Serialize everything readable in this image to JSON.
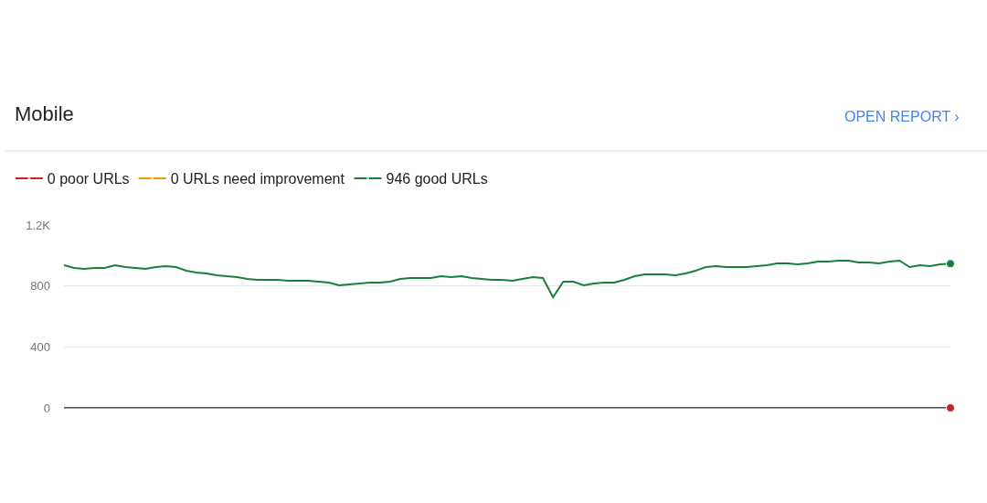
{
  "chart_data": {
    "type": "line",
    "title": "Mobile",
    "annotations": [
      "OPEN REPORT ›"
    ],
    "categories": [
      null,
      null,
      null,
      null,
      null,
      null,
      null,
      null,
      null,
      null,
      null,
      null,
      null,
      null,
      null,
      null,
      null,
      null,
      null,
      null,
      null,
      null,
      null,
      null,
      null,
      null,
      null,
      null,
      null,
      null,
      null,
      null,
      null,
      null,
      null,
      null,
      null,
      null,
      null,
      null,
      null,
      null,
      null,
      null,
      null,
      null,
      null,
      null,
      null,
      null,
      null,
      null,
      null,
      null,
      null,
      null,
      null,
      null,
      null,
      null,
      null,
      null,
      null,
      null,
      null,
      null,
      null,
      null,
      null,
      null,
      null,
      null,
      null,
      null,
      null,
      null,
      null,
      null,
      null,
      null,
      null,
      null,
      null,
      null,
      null,
      null,
      null,
      null
    ],
    "series": [
      {
        "name": "0 poor URLs",
        "color": "#c5221f",
        "values": [
          0,
          0,
          0,
          0,
          0,
          0,
          0,
          0,
          0,
          0,
          0,
          0,
          0,
          0,
          0,
          0,
          0,
          0,
          0,
          0,
          0,
          0,
          0,
          0,
          0,
          0,
          0,
          0,
          0,
          0,
          0,
          0,
          0,
          0,
          0,
          0,
          0,
          0,
          0,
          0,
          0,
          0,
          0,
          0,
          0,
          0,
          0,
          0,
          0,
          0,
          0,
          0,
          0,
          0,
          0,
          0,
          0,
          0,
          0,
          0,
          0,
          0,
          0,
          0,
          0,
          0,
          0,
          0,
          0,
          0,
          0,
          0,
          0,
          0,
          0,
          0,
          0,
          0,
          0,
          0,
          0,
          0,
          0,
          0,
          0,
          0,
          0,
          0
        ]
      },
      {
        "name": "0 URLs need improvement",
        "color": "#f29900",
        "values": [
          null,
          null,
          null,
          null,
          null,
          null,
          null,
          null,
          null,
          null,
          null,
          null,
          null,
          null,
          null,
          null,
          null,
          null,
          null,
          null,
          null,
          null,
          null,
          null,
          null,
          null,
          null,
          null,
          null,
          null,
          null,
          null,
          null,
          null,
          null,
          null,
          null,
          null,
          null,
          null,
          null,
          null,
          null,
          null,
          null,
          null,
          null,
          null,
          null,
          null,
          null,
          null,
          null,
          null,
          null,
          null,
          null,
          null,
          null,
          null,
          null,
          null,
          null,
          null,
          null,
          null,
          null,
          null,
          null,
          null,
          null,
          null,
          null,
          null,
          null,
          null,
          null,
          null,
          null,
          null,
          null,
          null,
          null,
          null,
          null,
          null,
          null,
          null
        ]
      },
      {
        "name": "946 good URLs",
        "color": "#188038",
        "values": [
          936,
          918,
          912,
          918,
          918,
          936,
          924,
          918,
          912,
          924,
          930,
          924,
          900,
          888,
          882,
          870,
          864,
          858,
          846,
          840,
          840,
          840,
          834,
          834,
          834,
          828,
          822,
          804,
          810,
          816,
          822,
          822,
          828,
          846,
          852,
          852,
          852,
          864,
          858,
          864,
          852,
          846,
          840,
          840,
          834,
          846,
          858,
          852,
          726,
          828,
          828,
          804,
          816,
          822,
          822,
          840,
          864,
          876,
          876,
          876,
          870,
          882,
          900,
          924,
          930,
          924,
          924,
          924,
          930,
          936,
          948,
          948,
          942,
          948,
          960,
          960,
          966,
          966,
          954,
          954,
          948,
          960,
          966,
          924,
          936,
          930,
          942,
          946
        ]
      }
    ],
    "ylim": [
      0,
      1200
    ],
    "yticks": [
      0,
      400,
      800,
      {
        "value": 1200,
        "label": "1.2K"
      }
    ],
    "grid": "y",
    "legend": "top left",
    "tick_labels": "y"
  }
}
